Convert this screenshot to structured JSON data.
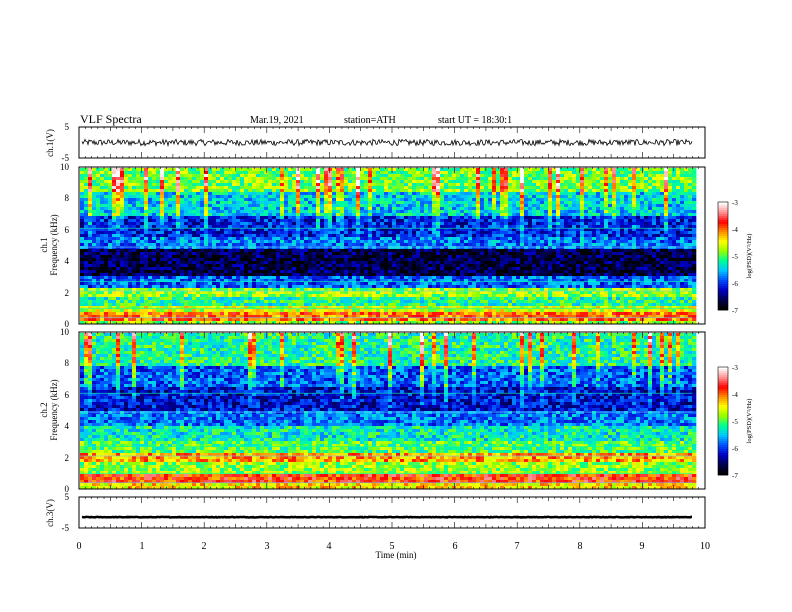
{
  "header": {
    "title": "VLF Spectra",
    "date": "Mar.19, 2021",
    "station": "station=ATH",
    "start": "start UT = 18:30:1"
  },
  "colors": {
    "background": "#ffffff",
    "axis": "#000000",
    "colormap": [
      "#000000",
      "#000050",
      "#0000c8",
      "#0050ff",
      "#00c8ff",
      "#00ff96",
      "#96ff00",
      "#ffff00",
      "#ff8c00",
      "#ff0000",
      "#ff9090",
      "#ffffff"
    ]
  },
  "chart_data": [
    {
      "type": "line",
      "name": "ch1-waveform",
      "ylabel": "ch.1(V)",
      "xlim": [
        0,
        10
      ],
      "ylim": [
        -5,
        5
      ],
      "yticks": [
        "5",
        "-5"
      ],
      "x_end": 9.8,
      "baseline": 0,
      "amplitude_approx": 1
    },
    {
      "type": "heatmap",
      "name": "ch1-spectrogram",
      "ylabel_lines": [
        "ch.1",
        "Frequency (kHz)"
      ],
      "xlim": [
        0,
        10
      ],
      "ylim": [
        0,
        10
      ],
      "yticks": [
        "0",
        "2",
        "4",
        "6",
        "8",
        "10"
      ],
      "x_end": 9.8,
      "colorbar": {
        "label": "log(PSD)(V²/Hz)",
        "range": [
          -7,
          -3
        ],
        "ticks": [
          "-3",
          "-4",
          "-5",
          "-6",
          "-7"
        ]
      },
      "bands_kHz_level": [
        [
          0.0,
          0.3,
          0.55
        ],
        [
          0.3,
          0.8,
          0.75
        ],
        [
          0.8,
          1.2,
          0.6
        ],
        [
          1.2,
          1.8,
          0.45
        ],
        [
          1.8,
          2.4,
          0.55
        ],
        [
          2.4,
          3.2,
          0.28
        ],
        [
          3.2,
          4.8,
          0.08
        ],
        [
          4.8,
          5.6,
          0.3
        ],
        [
          5.6,
          7.0,
          0.22
        ],
        [
          7.0,
          8.5,
          0.38
        ],
        [
          8.5,
          10.0,
          0.52
        ]
      ]
    },
    {
      "type": "heatmap",
      "name": "ch2-spectrogram",
      "ylabel_lines": [
        "ch.2",
        "Frequency (kHz)"
      ],
      "xlim": [
        0,
        10
      ],
      "ylim": [
        0,
        10
      ],
      "yticks": [
        "0",
        "2",
        "4",
        "6",
        "8",
        "10"
      ],
      "x_end": 9.8,
      "colorbar": {
        "label": "log(PSD)(V²/Hz)",
        "range": [
          -7,
          -3
        ],
        "ticks": [
          "-3",
          "-4",
          "-5",
          "-6",
          "-7"
        ]
      },
      "bands_kHz_level": [
        [
          0.0,
          0.5,
          0.65
        ],
        [
          0.5,
          1.0,
          0.8
        ],
        [
          1.0,
          1.8,
          0.55
        ],
        [
          1.8,
          2.4,
          0.7
        ],
        [
          2.4,
          3.2,
          0.5
        ],
        [
          3.2,
          4.2,
          0.42
        ],
        [
          4.2,
          5.0,
          0.3
        ],
        [
          5.0,
          6.5,
          0.2
        ],
        [
          6.5,
          8.0,
          0.28
        ],
        [
          8.0,
          10.0,
          0.45
        ]
      ]
    },
    {
      "type": "line",
      "name": "ch3-waveform",
      "ylabel": "ch.3(V)",
      "xlim": [
        0,
        10
      ],
      "ylim": [
        -5,
        5
      ],
      "yticks": [
        "5",
        "-5"
      ],
      "x_end": 9.8,
      "baseline": -1.5,
      "amplitude_approx": 0.2
    }
  ],
  "x_axis": {
    "label": "Time (min)",
    "ticks": [
      "0",
      "1",
      "2",
      "3",
      "4",
      "5",
      "6",
      "7",
      "8",
      "9",
      "10"
    ]
  }
}
